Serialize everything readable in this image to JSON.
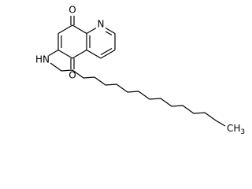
{
  "labels": {
    "o_top": "O",
    "n_ring": "N",
    "nh": "HN",
    "o_bottom": "O",
    "ch3_main": "CH",
    "ch3_sub": "3"
  }
}
